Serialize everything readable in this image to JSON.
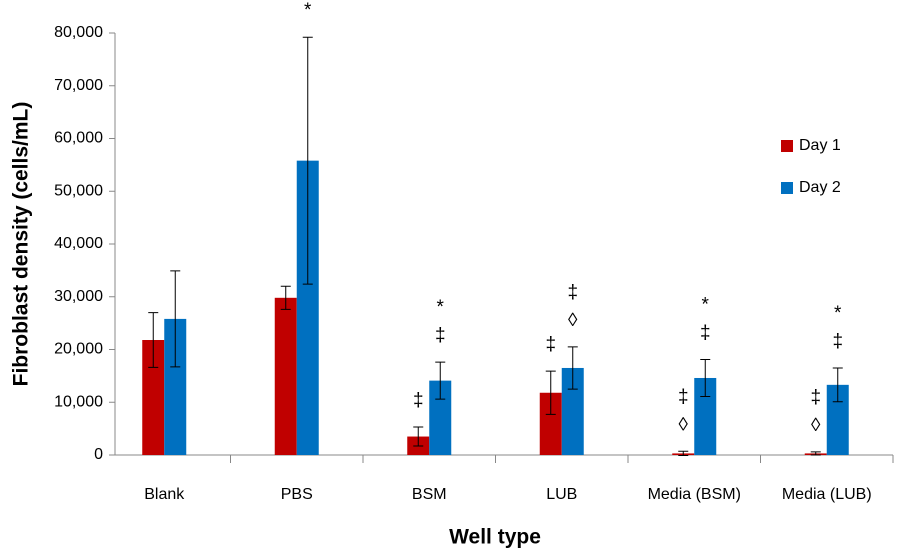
{
  "chart_data": {
    "type": "bar",
    "x_label": "Well type",
    "y_label": "Fibroblast density (cells/mL)",
    "categories": [
      "Blank",
      "PBS",
      "BSM",
      "LUB",
      "Media (BSM)",
      "Media (LUB)"
    ],
    "series": [
      {
        "name": "Day 1",
        "color": "#c00000",
        "values": [
          21800,
          29800,
          3500,
          11800,
          300,
          300
        ],
        "errors": [
          5200,
          2200,
          1800,
          4100,
          400,
          300
        ],
        "annotations": [
          [],
          [],
          [
            "‡"
          ],
          [
            "‡"
          ],
          [
            "◊",
            "‡"
          ],
          [
            "◊",
            "‡"
          ]
        ]
      },
      {
        "name": "Day 2",
        "color": "#0070c0",
        "values": [
          25800,
          55800,
          14100,
          16500,
          14600,
          13300
        ],
        "errors": [
          9100,
          23400,
          3500,
          4000,
          3500,
          3200
        ],
        "annotations": [
          [],
          [
            "*"
          ],
          [
            "‡",
            "*"
          ],
          [
            "◊",
            "‡"
          ],
          [
            "‡",
            "*"
          ],
          [
            "‡",
            "*"
          ]
        ]
      }
    ],
    "ylim": [
      0,
      80000
    ],
    "yticks": [
      0,
      {
        "value": 10000,
        "label": "10,000"
      },
      {
        "value": 20000,
        "label": "20,000"
      },
      {
        "value": 30000,
        "label": "30,000"
      },
      {
        "value": 40000,
        "label": "40,000"
      },
      {
        "value": 50000,
        "label": "50,000"
      },
      {
        "value": 60000,
        "label": "60,000"
      },
      {
        "value": 70000,
        "label": "70,000"
      },
      {
        "value": 80000,
        "label": "80,000"
      }
    ],
    "legend": "right"
  }
}
